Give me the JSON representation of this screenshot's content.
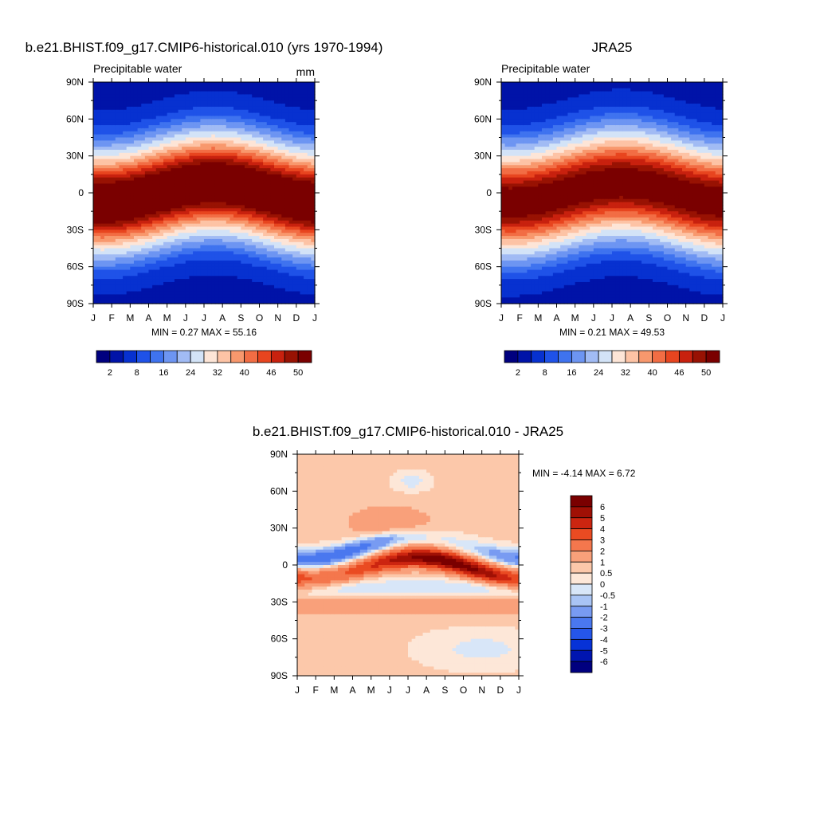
{
  "panels": [
    {
      "title": "b.e21.BHIST.f09_g17.CMIP6-historical.010 (yrs 1970-1994)",
      "left_label": "Precipitable water",
      "units": "mm",
      "stats": "MIN =   0.27 MAX =  55.16"
    },
    {
      "title": "JRA25",
      "left_label": "Precipitable water",
      "units": "",
      "stats": "MIN =   0.21 MAX =  49.53"
    },
    {
      "title": "b.e21.BHIST.f09_g17.CMIP6-historical.010 - JRA25",
      "left_label": "",
      "units": "",
      "stats": "MIN =  -4.14 MAX =   6.72"
    }
  ],
  "chart_data": [
    {
      "type": "heatmap",
      "title": "b.e21.BHIST.f09_g17.CMIP6-historical.010 (yrs 1970-1994)",
      "x_ticks": [
        "J",
        "F",
        "M",
        "A",
        "M",
        "J",
        "J",
        "A",
        "S",
        "O",
        "N",
        "D",
        "J"
      ],
      "y_ticks": [
        "90N",
        "60N",
        "30N",
        "0",
        "30S",
        "60S",
        "90S"
      ],
      "ylim": [
        -90,
        90
      ],
      "field": "zonal-mean precipitable water (mm) vs month",
      "min": 0.27,
      "max": 55.16,
      "colorbar": {
        "orientation": "horizontal",
        "labels": [
          "2",
          "8",
          "16",
          "24",
          "32",
          "40",
          "46",
          "50"
        ],
        "levels": [
          2,
          4,
          6,
          8,
          10,
          13,
          16,
          20,
          24,
          28,
          32,
          36,
          40,
          44,
          48,
          50
        ],
        "colors": [
          "#00007f",
          "#0013a8",
          "#0731d0",
          "#1f52e8",
          "#3f73ef",
          "#6d95f2",
          "#a1bbf4",
          "#d3e3f7",
          "#fde5d7",
          "#fdc3a5",
          "#f8986d",
          "#f26d44",
          "#e8451f",
          "#c8210e",
          "#981203",
          "#7a0000"
        ]
      }
    },
    {
      "type": "heatmap",
      "title": "JRA25",
      "x_ticks": [
        "J",
        "F",
        "M",
        "A",
        "M",
        "J",
        "J",
        "A",
        "S",
        "O",
        "N",
        "D",
        "J"
      ],
      "y_ticks": [
        "90N",
        "60N",
        "30N",
        "0",
        "30S",
        "60S",
        "90S"
      ],
      "ylim": [
        -90,
        90
      ],
      "field": "zonal-mean precipitable water (mm) vs month",
      "min": 0.21,
      "max": 49.53,
      "colorbar": {
        "orientation": "horizontal",
        "labels": [
          "2",
          "8",
          "16",
          "24",
          "32",
          "40",
          "46",
          "50"
        ],
        "levels": [
          2,
          4,
          6,
          8,
          10,
          13,
          16,
          20,
          24,
          28,
          32,
          36,
          40,
          44,
          48,
          50
        ],
        "colors": [
          "#00007f",
          "#0013a8",
          "#0731d0",
          "#1f52e8",
          "#3f73ef",
          "#6d95f2",
          "#a1bbf4",
          "#d3e3f7",
          "#fde5d7",
          "#fdc3a5",
          "#f8986d",
          "#f26d44",
          "#e8451f",
          "#c8210e",
          "#981203",
          "#7a0000"
        ]
      }
    },
    {
      "type": "heatmap",
      "title": "b.e21.BHIST.f09_g17.CMIP6-historical.010 - JRA25",
      "x_ticks": [
        "J",
        "F",
        "M",
        "A",
        "M",
        "J",
        "J",
        "A",
        "S",
        "O",
        "N",
        "D",
        "J"
      ],
      "y_ticks": [
        "90N",
        "60N",
        "30N",
        "0",
        "30S",
        "60S",
        "90S"
      ],
      "ylim": [
        -90,
        90
      ],
      "field": "difference in precipitable water (mm)",
      "min": -4.14,
      "max": 6.72,
      "colorbar": {
        "orientation": "vertical",
        "labels": [
          "6",
          "5",
          "4",
          "3",
          "2",
          "1",
          "0.5",
          "0",
          "-0.5",
          "-1",
          "-2",
          "-3",
          "-4",
          "-5",
          "-6"
        ],
        "levels": [
          -6,
          -5,
          -4,
          -3,
          -2,
          -1,
          -0.5,
          0,
          0.5,
          1,
          2,
          3,
          4,
          5,
          6
        ],
        "colors": [
          "#00007f",
          "#0015b0",
          "#0732d7",
          "#2556ea",
          "#4a78ef",
          "#789bf2",
          "#a9c4f5",
          "#d8e6f8",
          "#fde7d8",
          "#fcc8aa",
          "#f9a07a",
          "#f4774d",
          "#ea4b22",
          "#cc2510",
          "#a01005",
          "#7a0000"
        ]
      }
    }
  ]
}
